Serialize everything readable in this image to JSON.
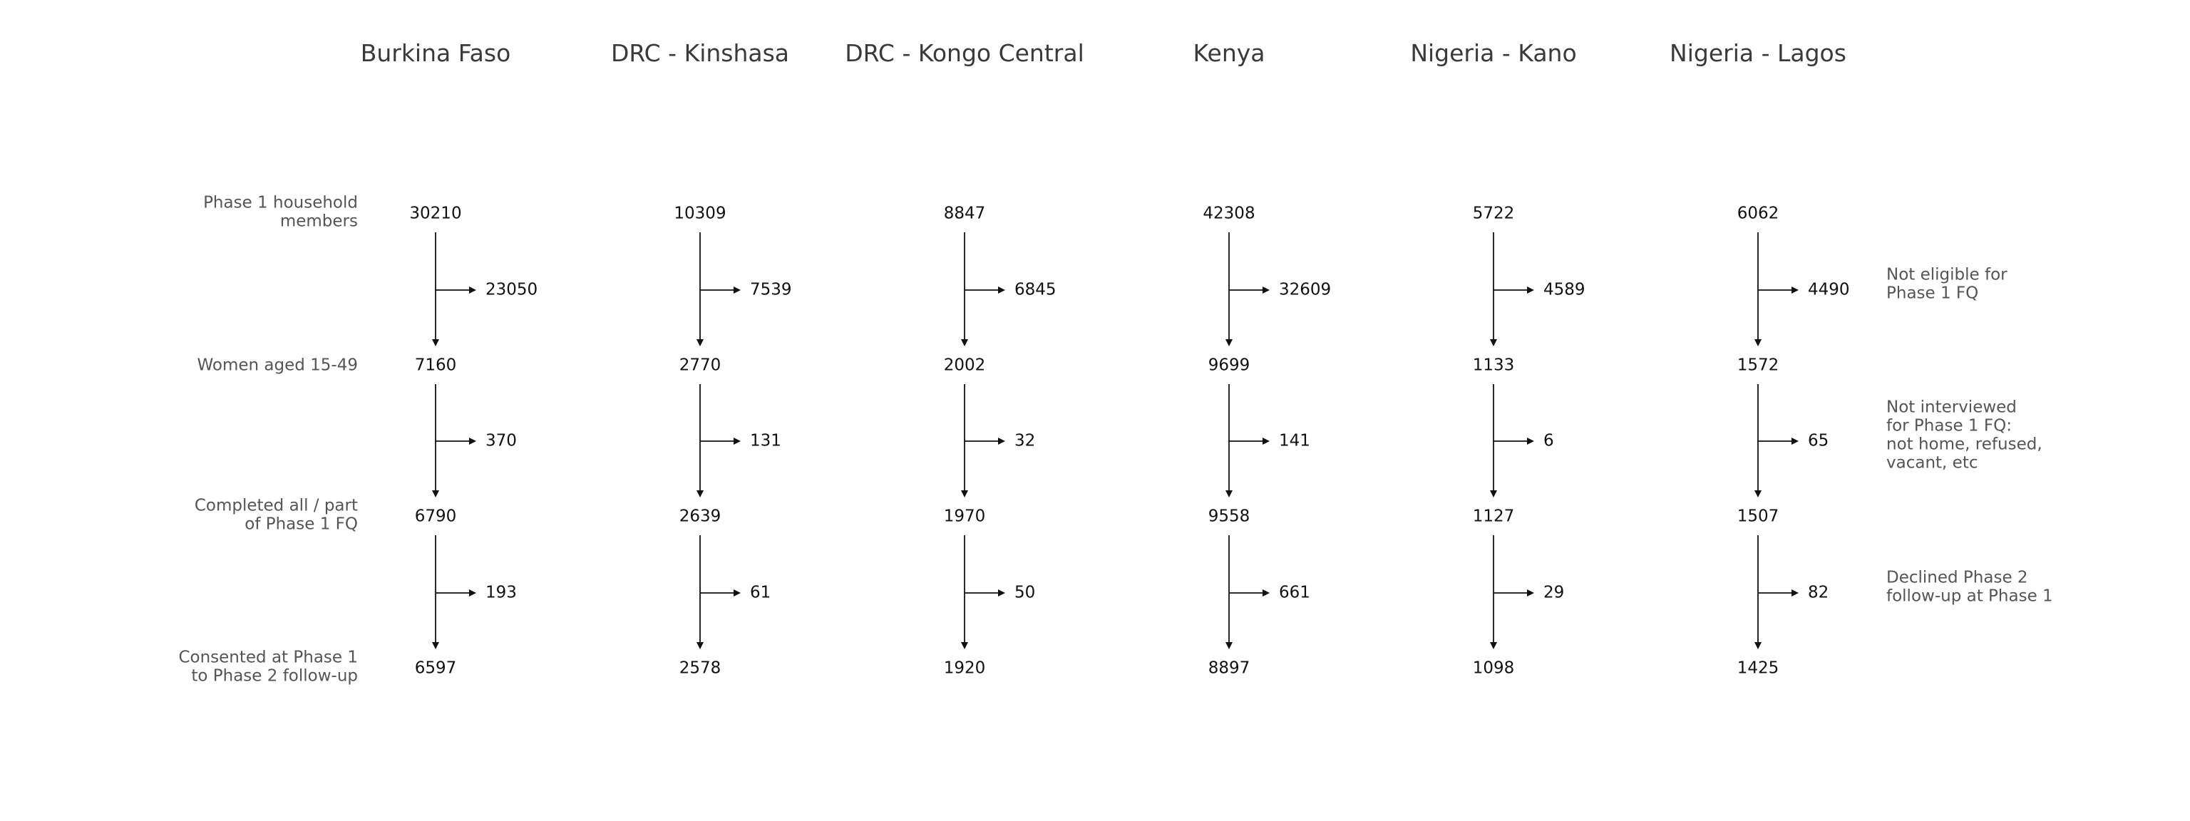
{
  "countries": [
    {
      "name": "Burkina Faso",
      "values": [
        "30210",
        "7160",
        "6790",
        "6597"
      ],
      "exits": [
        "23050",
        "370",
        "193"
      ]
    },
    {
      "name": "DRC - Kinshasa",
      "values": [
        "10309",
        "2770",
        "2639",
        "2578"
      ],
      "exits": [
        "7539",
        "131",
        "61"
      ]
    },
    {
      "name": "DRC - Kongo Central",
      "values": [
        "8847",
        "2002",
        "1970",
        "1920"
      ],
      "exits": [
        "6845",
        "32",
        "50"
      ]
    },
    {
      "name": "Kenya",
      "values": [
        "42308",
        "9699",
        "9558",
        "8897"
      ],
      "exits": [
        "32609",
        "141",
        "661"
      ]
    },
    {
      "name": "Nigeria - Kano",
      "values": [
        "5722",
        "1133",
        "1127",
        "1098"
      ],
      "exits": [
        "4589",
        "6",
        "29"
      ]
    },
    {
      "name": "Nigeria - Lagos",
      "values": [
        "6062",
        "1572",
        "1507",
        "1425"
      ],
      "exits": [
        "4490",
        "65",
        "82"
      ]
    }
  ],
  "row_labels": [
    [
      "Phase 1 household",
      "members"
    ],
    [
      "Women aged 15-49"
    ],
    [
      "Completed all / part",
      "of Phase 1 FQ"
    ],
    [
      "Consented at Phase 1",
      "to Phase 2 follow-up"
    ]
  ],
  "exit_labels": [
    [
      "Not eligible for",
      "Phase 1 FQ"
    ],
    [
      "Not interviewed",
      "for Phase 1 FQ:",
      "not home, refused,",
      "vacant, etc"
    ],
    [
      "Declined Phase 2",
      "follow-up at Phase 1"
    ]
  ]
}
